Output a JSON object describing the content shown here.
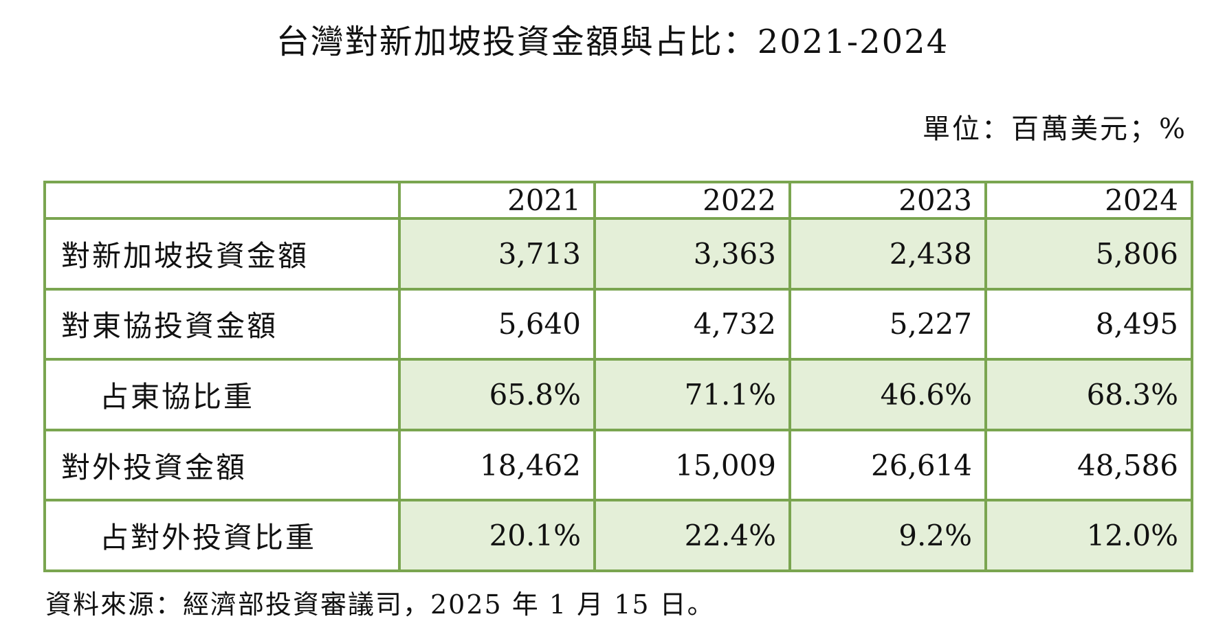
{
  "title": "台灣對新加坡投資金額與占比：2021-2024",
  "unit": "單位：百萬美元；%",
  "table": {
    "header": [
      "",
      "2021",
      "2022",
      "2023",
      "2024"
    ],
    "rows": [
      {
        "label": "對新加坡投資金額",
        "values": [
          "3,713",
          "3,363",
          "2,438",
          "5,806"
        ]
      },
      {
        "label": "對東協投資金額",
        "values": [
          "5,640",
          "4,732",
          "5,227",
          "8,495"
        ]
      },
      {
        "label": "占東協比重",
        "values": [
          "65.8%",
          "71.1%",
          "46.6%",
          "68.3%"
        ]
      },
      {
        "label": "對外投資金額",
        "values": [
          "18,462",
          "15,009",
          "26,614",
          "48,586"
        ]
      },
      {
        "label": "占對外投資比重",
        "values": [
          "20.1%",
          "22.4%",
          "9.2%",
          "12.0%"
        ]
      }
    ]
  },
  "source": "資料來源：經濟部投資審議司，2025 年 1 月 15 日。",
  "colors": {
    "border": "#7aa550",
    "shaded_cell": "#e4efd8"
  }
}
